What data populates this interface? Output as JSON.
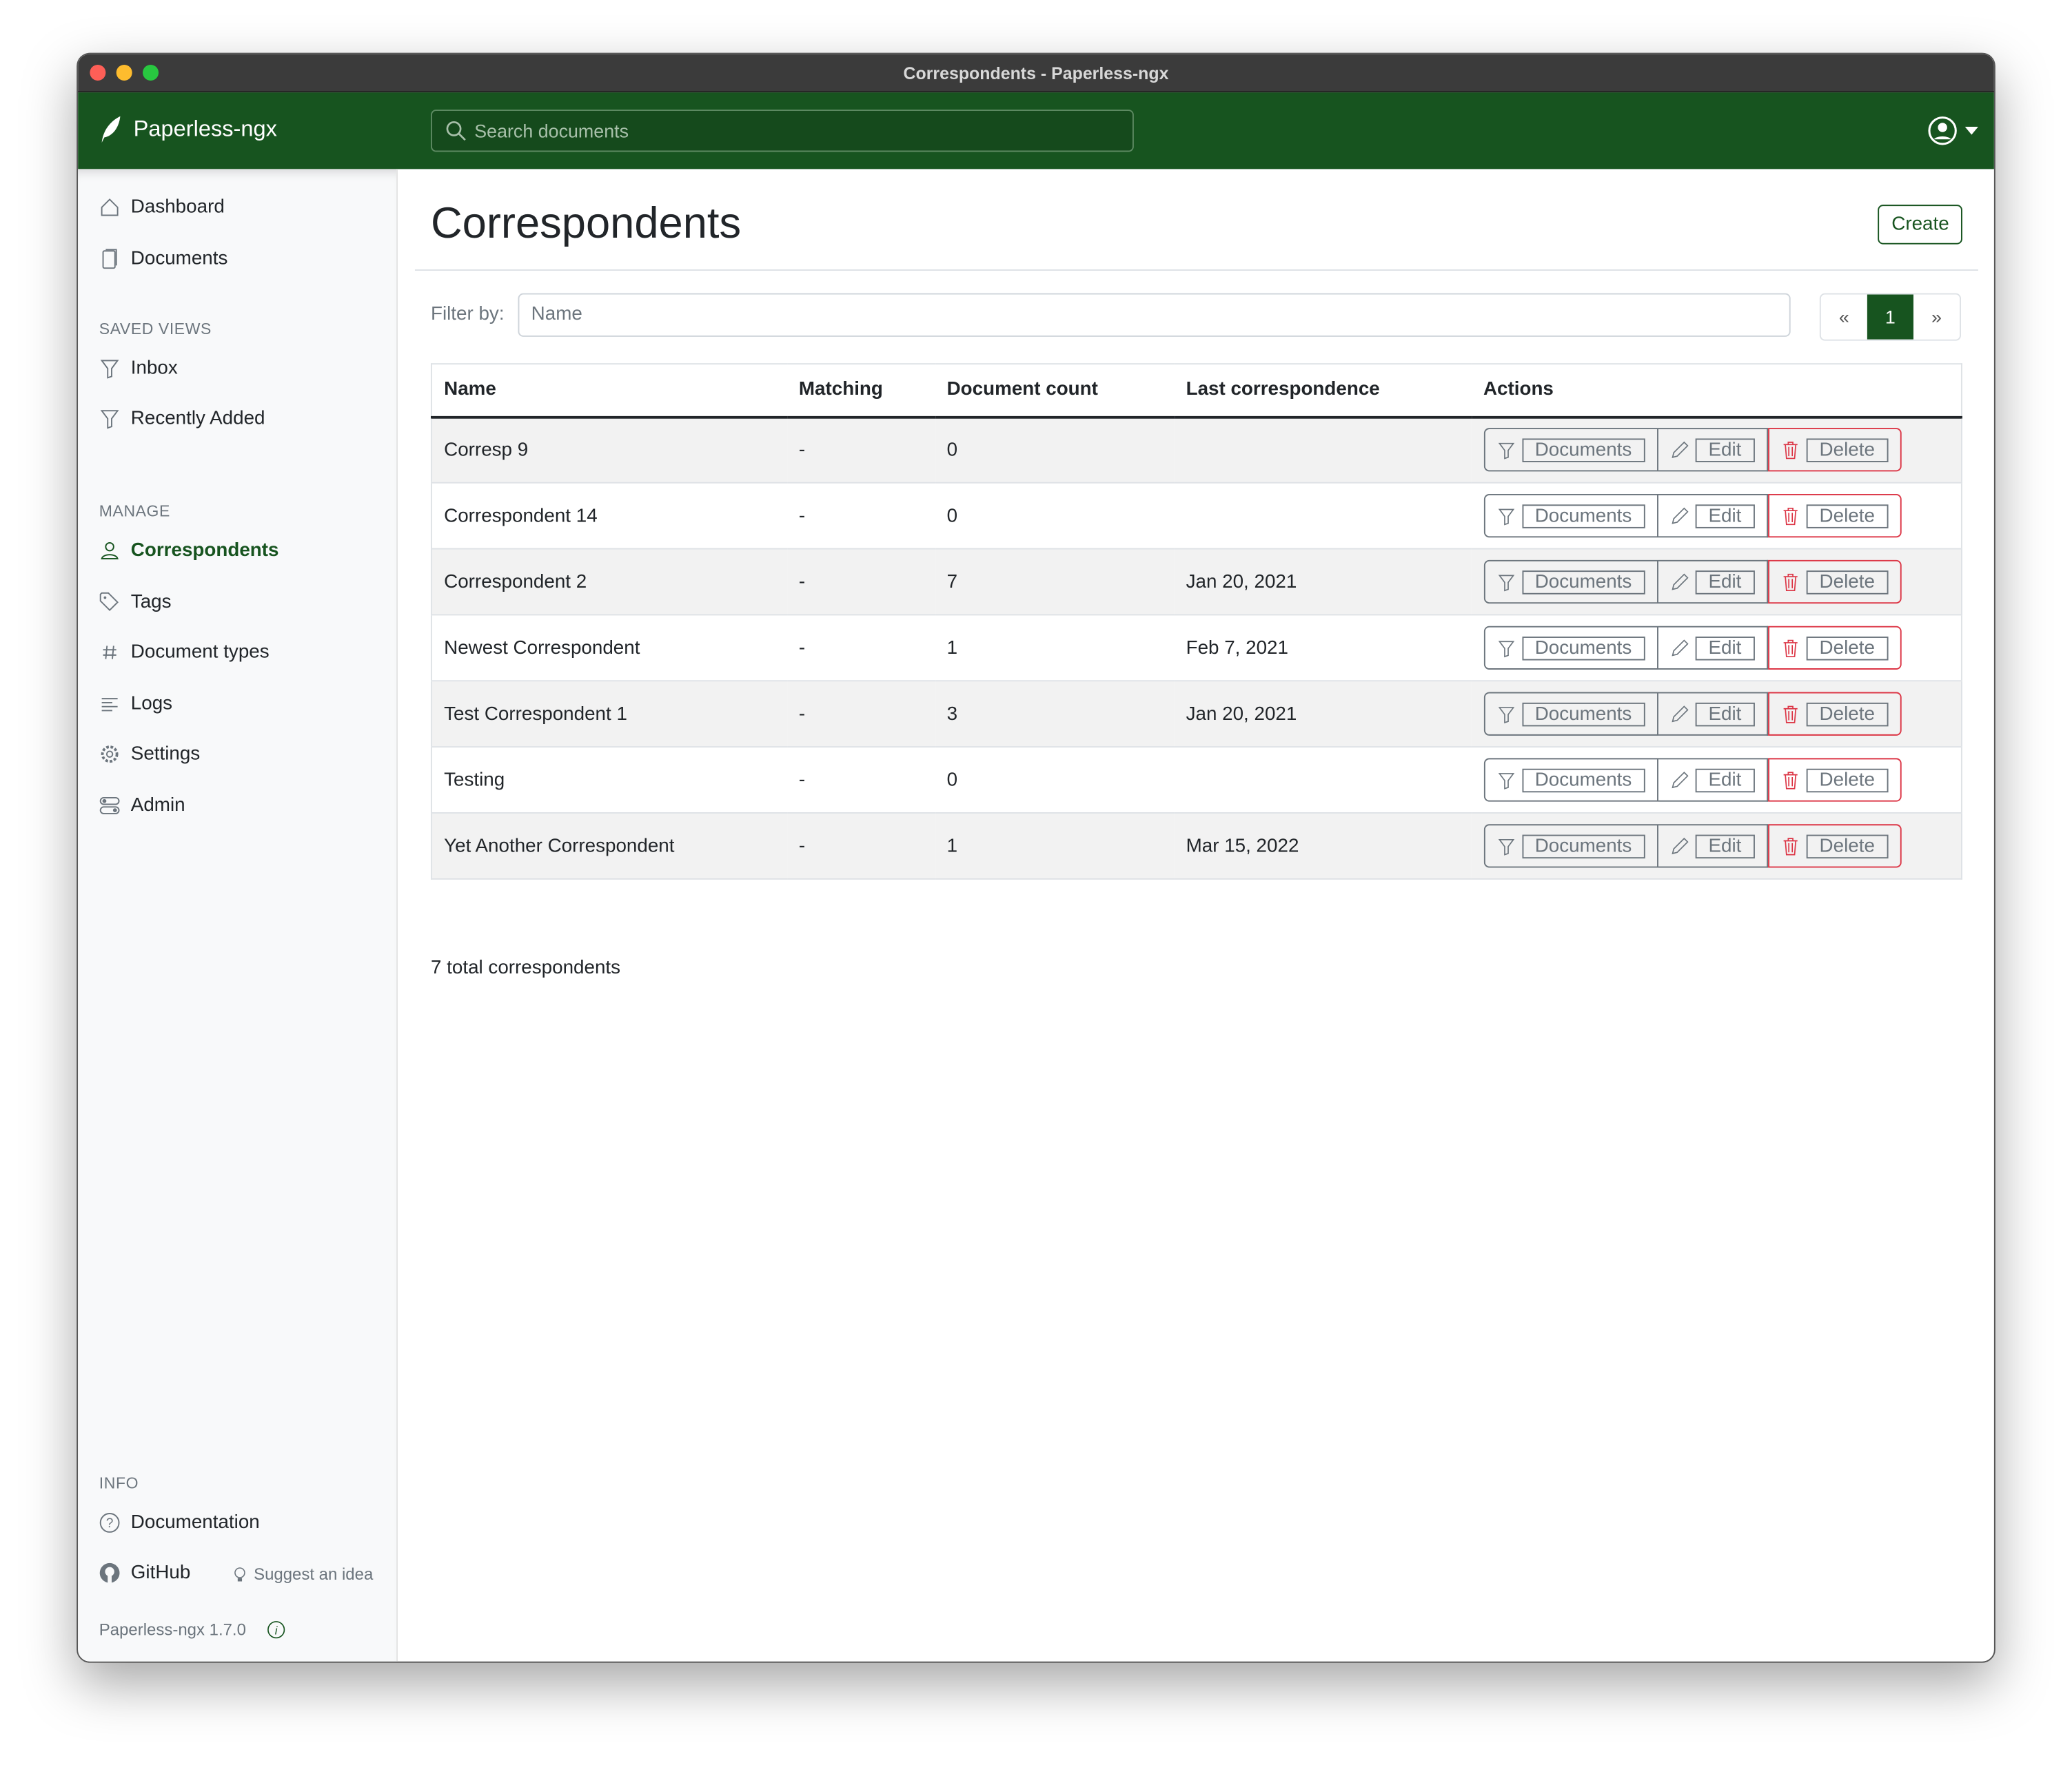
{
  "window": {
    "title": "Correspondents - Paperless-ngx"
  },
  "header": {
    "brand": "Paperless-ngx",
    "search_placeholder": "Search documents"
  },
  "sidebar": {
    "main": [
      {
        "label": "Dashboard",
        "icon": "house-icon"
      },
      {
        "label": "Documents",
        "icon": "files-icon"
      }
    ],
    "saved_views_heading": "SAVED VIEWS",
    "saved_views": [
      {
        "label": "Inbox",
        "icon": "funnel-icon"
      },
      {
        "label": "Recently Added",
        "icon": "funnel-icon"
      }
    ],
    "manage_heading": "MANAGE",
    "manage": [
      {
        "label": "Correspondents",
        "icon": "person-icon",
        "active": true
      },
      {
        "label": "Tags",
        "icon": "tags-icon"
      },
      {
        "label": "Document types",
        "icon": "hash-icon"
      },
      {
        "label": "Logs",
        "icon": "text-left-icon"
      },
      {
        "label": "Settings",
        "icon": "gear-icon"
      },
      {
        "label": "Admin",
        "icon": "toggles-icon"
      }
    ],
    "info_heading": "INFO",
    "documentation": "Documentation",
    "github": "GitHub",
    "suggest": "Suggest an idea",
    "version": "Paperless-ngx 1.7.0"
  },
  "main": {
    "title": "Correspondents",
    "create_label": "Create",
    "filter_label": "Filter by:",
    "filter_placeholder": "Name",
    "pager": {
      "prev": "«",
      "current": "1",
      "next": "»"
    },
    "columns": [
      "Name",
      "Matching",
      "Document count",
      "Last correspondence",
      "Actions"
    ],
    "actions": {
      "documents": "Documents",
      "edit": "Edit",
      "delete": "Delete"
    },
    "rows": [
      {
        "name": "Corresp 9",
        "matching": "-",
        "count": "0",
        "last": ""
      },
      {
        "name": "Correspondent 14",
        "matching": "-",
        "count": "0",
        "last": ""
      },
      {
        "name": "Correspondent 2",
        "matching": "-",
        "count": "7",
        "last": "Jan 20, 2021"
      },
      {
        "name": "Newest Correspondent",
        "matching": "-",
        "count": "1",
        "last": "Feb 7, 2021"
      },
      {
        "name": "Test Correspondent 1",
        "matching": "-",
        "count": "3",
        "last": "Jan 20, 2021"
      },
      {
        "name": "Testing",
        "matching": "-",
        "count": "0",
        "last": ""
      },
      {
        "name": "Yet Another Correspondent",
        "matching": "-",
        "count": "1",
        "last": "Mar 15, 2022"
      }
    ],
    "total": "7 total correspondents"
  },
  "colors": {
    "brand": "#17541f",
    "danger": "#dc3545",
    "secondary": "#6c757d"
  }
}
